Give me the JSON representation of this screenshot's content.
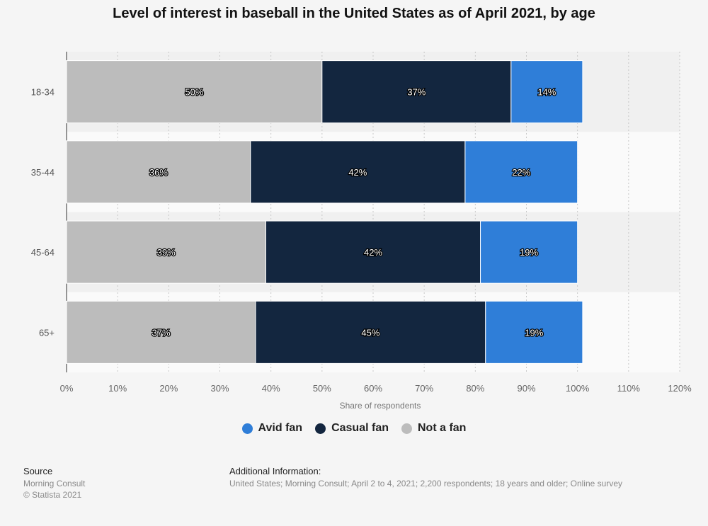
{
  "title": "Level of interest in baseball in the United States as of April 2021, by age",
  "colors": {
    "avid": "#2f7ed8",
    "casual": "#13263f",
    "notfan": "#bcbcbc"
  },
  "chart_data": {
    "type": "bar",
    "orientation": "horizontal",
    "stacked": true,
    "title": "Level of interest in baseball in the United States as of April 2021, by age",
    "categories": [
      "18-34",
      "35-44",
      "45-64",
      "65+"
    ],
    "series": [
      {
        "name": "Not a fan",
        "values": [
          50,
          36,
          39,
          37
        ],
        "labels": [
          "50%",
          "36%",
          "39%",
          "37%"
        ]
      },
      {
        "name": "Casual fan",
        "values": [
          37,
          42,
          42,
          45
        ],
        "labels": [
          "37%",
          "42%",
          "42%",
          "45%"
        ]
      },
      {
        "name": "Avid fan",
        "values": [
          14,
          22,
          19,
          19
        ],
        "labels": [
          "14%",
          "22%",
          "19%",
          "19%"
        ]
      }
    ],
    "xlabel": "Share of respondents",
    "ylabel": "",
    "xlim": [
      0,
      120
    ],
    "x_ticks": [
      "0%",
      "10%",
      "20%",
      "30%",
      "40%",
      "50%",
      "60%",
      "70%",
      "80%",
      "90%",
      "100%",
      "110%",
      "120%"
    ],
    "grid": true,
    "legend_position": "bottom"
  },
  "legend": [
    {
      "label": "Avid fan",
      "color_key": "avid"
    },
    {
      "label": "Casual fan",
      "color_key": "casual"
    },
    {
      "label": "Not a fan",
      "color_key": "notfan"
    }
  ],
  "footer": {
    "source_heading": "Source",
    "source_lines": [
      "Morning Consult",
      "© Statista 2021"
    ],
    "info_heading": "Additional Information:",
    "info_line": "United States; Morning Consult; April 2 to 4, 2021; 2,200 respondents; 18 years and older; Online survey"
  }
}
